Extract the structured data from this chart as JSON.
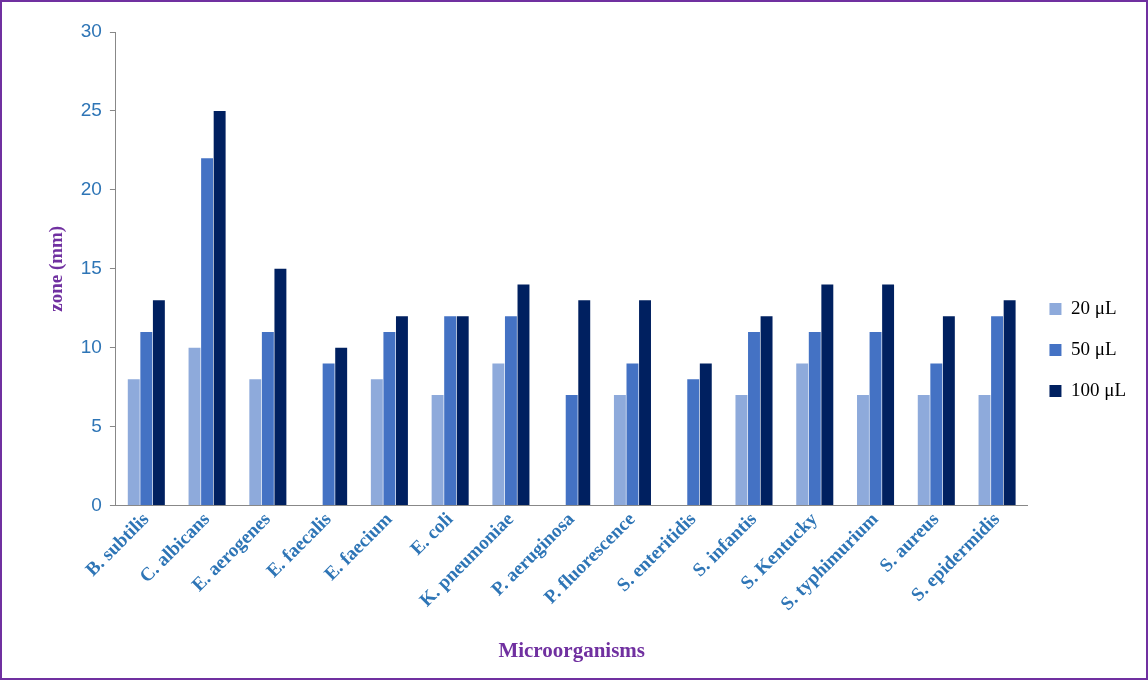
{
  "chart_data": {
    "type": "bar",
    "xlabel": "Microorganisms",
    "ylabel": "zone (mm)",
    "categories": [
      "B. subtilis",
      "C. albicans",
      "E. aerogenes",
      "E. faecalis",
      "E. faecium",
      "E. coli",
      "K. pneumoniae",
      "P. aeruginosa",
      "P. fluorescence",
      "S. enteritidis",
      "S. infantis",
      "S. Kentucky",
      "S. typhimurium",
      "S. aureus",
      "S. epidermidis"
    ],
    "series": [
      {
        "name": "20 μL",
        "color": "#8eaadb",
        "values": [
          8,
          10,
          8,
          null,
          8,
          7,
          9,
          null,
          7,
          null,
          7,
          9,
          7,
          7,
          7
        ]
      },
      {
        "name": "50 μL",
        "color": "#4472c4",
        "values": [
          11,
          22,
          11,
          9,
          11,
          12,
          12,
          7,
          9,
          8,
          11,
          11,
          11,
          9,
          12
        ]
      },
      {
        "name": "100 μL",
        "color": "#002060",
        "values": [
          13,
          25,
          15,
          10,
          12,
          12,
          14,
          13,
          13,
          9,
          12,
          14,
          14,
          12,
          13
        ]
      }
    ],
    "ylim": [
      0,
      30
    ],
    "yticks": [
      0,
      5,
      10,
      15,
      20,
      25,
      30
    ],
    "grid": false,
    "legend": "right"
  }
}
